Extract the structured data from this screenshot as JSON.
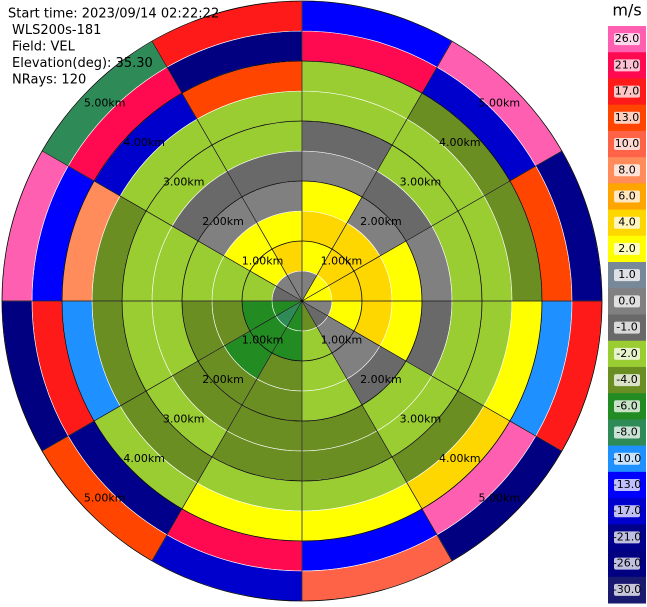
{
  "chart_data": {
    "type": "ppi",
    "header": [
      "Start time: 2023/09/14 02:22:22",
      "WLS200s-181",
      "Field: VEL",
      "Elevation(deg): 35.30",
      "NRays: 120"
    ],
    "rlim": [
      0,
      5
    ],
    "range_rings": [
      {
        "value": 1,
        "label": "1.00km"
      },
      {
        "value": 2,
        "label": "2.00km"
      },
      {
        "value": 3,
        "label": "3.00km"
      },
      {
        "value": 4,
        "label": "4.00km"
      },
      {
        "value": 5,
        "label": "5.00km"
      }
    ],
    "colorbar": {
      "title": "m/s",
      "ticks": [
        {
          "value": 26,
          "label": "26.0"
        },
        {
          "value": 21,
          "label": "21.0"
        },
        {
          "value": 17,
          "label": "17.0"
        },
        {
          "value": 13,
          "label": "13.0"
        },
        {
          "value": 10,
          "label": "10.0"
        },
        {
          "value": 8,
          "label": "8.0"
        },
        {
          "value": 6,
          "label": "6.0"
        },
        {
          "value": 4,
          "label": "4.0"
        },
        {
          "value": 2,
          "label": "2.0"
        },
        {
          "value": 1,
          "label": "1.0"
        },
        {
          "value": 0,
          "label": "0.0"
        },
        {
          "value": -1,
          "label": "-1.0"
        },
        {
          "value": -2,
          "label": "-2.0"
        },
        {
          "value": -4,
          "label": "-4.0"
        },
        {
          "value": -6,
          "label": "-6.0"
        },
        {
          "value": -8,
          "label": "-8.0"
        },
        {
          "value": -10,
          "label": "-10.0"
        },
        {
          "value": -13,
          "label": "-13.0"
        },
        {
          "value": -17,
          "label": "-17.0"
        },
        {
          "value": -21,
          "label": "-21.0"
        },
        {
          "value": -26,
          "label": "-26.0"
        },
        {
          "value": -30,
          "label": "-30.0"
        }
      ],
      "colors": [
        "#ff5fb0",
        "#ff0a50",
        "#ff1a1a",
        "#ff4500",
        "#ff6347",
        "#ff8c5a",
        "#ffa500",
        "#ffd700",
        "#ffff00",
        "#778899",
        "#808080",
        "#696969",
        "#9acd32",
        "#6b8e23",
        "#228b22",
        "#2e8b57",
        "#1e90ff",
        "#0000ff",
        "#0000cd",
        "#00008b",
        "#000080",
        "#191970"
      ]
    },
    "field": [
      [
        0,
        2,
        4,
        2,
        0,
        -1,
        -2,
        -2,
        21,
        -13
      ],
      [
        2,
        4,
        4,
        0,
        -1,
        -2,
        -2,
        -4,
        -17,
        26
      ],
      [
        2,
        4,
        4,
        2,
        0,
        -2,
        -2,
        -4,
        13,
        -21
      ],
      [
        0,
        2,
        4,
        2,
        -1,
        -2,
        -2,
        2,
        -10,
        17
      ],
      [
        -1,
        0,
        0,
        -1,
        -2,
        -2,
        -4,
        4,
        26,
        -26
      ],
      [
        -4,
        -2,
        -2,
        -2,
        -4,
        -4,
        -2,
        2,
        -13,
        10
      ],
      [
        -6,
        -6,
        -4,
        -4,
        -4,
        -4,
        -2,
        2,
        21,
        -17
      ],
      [
        -8,
        -6,
        -6,
        -4,
        -4,
        -2,
        -4,
        -2,
        -21,
        13
      ],
      [
        -6,
        -6,
        -4,
        -4,
        -2,
        -2,
        -4,
        -10,
        17,
        -26
      ],
      [
        -1,
        -2,
        -2,
        -2,
        -2,
        -2,
        -4,
        8,
        -13,
        26
      ],
      [
        0,
        2,
        2,
        0,
        -1,
        -2,
        -2,
        -17,
        21,
        -8
      ],
      [
        0,
        4,
        2,
        0,
        -1,
        -2,
        -2,
        13,
        -26,
        17
      ]
    ]
  }
}
